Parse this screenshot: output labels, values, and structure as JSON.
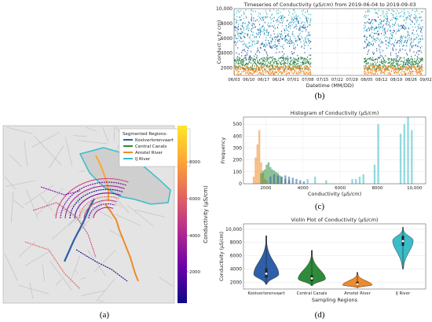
{
  "figure": {
    "captions": {
      "a": "(a)",
      "b": "(b)",
      "c": "(c)",
      "d": "(d)"
    }
  },
  "map": {
    "legend_title": "Segmented Regions:",
    "legend_items": [
      {
        "label": "Kostverlorenvaart",
        "color": "#2f5fa8"
      },
      {
        "label": "Central Canals",
        "color": "#2e8b3a"
      },
      {
        "label": "Amstel River",
        "color": "#ef8a2a"
      },
      {
        "label": "IJ River",
        "color": "#3bbcc9"
      }
    ],
    "colorbar": {
      "label": "Conductivity (µS/cm)",
      "ticks": [
        "8000",
        "6000",
        "4000",
        "2000"
      ],
      "colors": [
        "#fde725",
        "#fca636",
        "#e16462",
        "#b12a90",
        "#6a00a8",
        "#0d0887"
      ]
    }
  },
  "chart_data": [
    {
      "id": "timeseries",
      "type": "scatter",
      "title": "Timeseries of Conductivity (µS/cm) from 2019-06-04 to 2019-09-03",
      "xlabel": "Datetime (MM/DD)",
      "ylabel": "Conduct v ty      cm)",
      "x_ticks": [
        "06/03",
        "06/10",
        "06/17",
        "06/24",
        "07/01",
        "07/08",
        "07/15",
        "07/22",
        "07/29",
        "08/05",
        "08/12",
        "08/19",
        "08/26",
        "09/02"
      ],
      "y_ticks": [
        "2000",
        "4000",
        "6000",
        "8000",
        "10,000"
      ],
      "ylim": [
        1000,
        10000
      ],
      "grid": true,
      "series": [
        {
          "color": "#3bbcc9",
          "segments": [
            [
              0,
              5.2
            ],
            [
              8.8,
              12.8
            ]
          ],
          "y_range": [
            5000,
            10000
          ]
        },
        {
          "color": "#2f5fa8",
          "segments": [
            [
              0,
              5.2
            ],
            [
              8.8,
              12.8
            ]
          ],
          "y_range": [
            2500,
            9000
          ]
        },
        {
          "color": "#2e8b3a",
          "segments": [
            [
              0,
              5.2
            ],
            [
              8.8,
              12.8
            ]
          ],
          "y_range": [
            1800,
            3500
          ]
        },
        {
          "color": "#ef8a2a",
          "segments": [
            [
              0,
              5.2
            ],
            [
              8.8,
              12.8
            ]
          ],
          "y_range": [
            1200,
            2400
          ]
        }
      ]
    },
    {
      "id": "histogram",
      "type": "bar",
      "title": "Histogram of Conductivity (µS/cm)",
      "xlabel": "Conductivity (µS/cm)",
      "ylabel": "Frequency",
      "x_ticks": [
        "2000",
        "4000",
        "6000",
        "8000",
        "10,000"
      ],
      "y_ticks": [
        "0",
        "100",
        "200",
        "300",
        "400",
        "500"
      ],
      "xlim": [
        800,
        10600
      ],
      "ylim": [
        0,
        560
      ],
      "series": [
        {
          "name": "Amstel River",
          "color": "#ef8a2a",
          "bins": [
            [
              1300,
              60
            ],
            [
              1400,
              220
            ],
            [
              1500,
              330
            ],
            [
              1600,
              450
            ],
            [
              1700,
              180
            ],
            [
              1800,
              90
            ],
            [
              1900,
              40
            ],
            [
              2000,
              30
            ]
          ]
        },
        {
          "name": "Central Canals",
          "color": "#2e8b3a",
          "bins": [
            [
              1700,
              90
            ],
            [
              1800,
              110
            ],
            [
              1900,
              120
            ],
            [
              2000,
              160
            ],
            [
              2100,
              180
            ],
            [
              2200,
              140
            ],
            [
              2300,
              120
            ],
            [
              2400,
              110
            ],
            [
              2500,
              100
            ],
            [
              2600,
              90
            ],
            [
              2700,
              70
            ],
            [
              2800,
              60
            ],
            [
              3000,
              40
            ],
            [
              3200,
              30
            ]
          ]
        },
        {
          "name": "Kostverlorenvaart",
          "color": "#2f5fa8",
          "bins": [
            [
              2200,
              60
            ],
            [
              2400,
              80
            ],
            [
              2600,
              70
            ],
            [
              2800,
              60
            ],
            [
              3000,
              70
            ],
            [
              3200,
              60
            ],
            [
              3400,
              50
            ],
            [
              3600,
              40
            ],
            [
              3800,
              30
            ],
            [
              4000,
              20
            ]
          ]
        },
        {
          "name": "IJ River",
          "color": "#3bbcc9",
          "bins": [
            [
              4200,
              40
            ],
            [
              4600,
              60
            ],
            [
              5200,
              30
            ],
            [
              6600,
              40
            ],
            [
              6800,
              40
            ],
            [
              7000,
              60
            ],
            [
              7200,
              80
            ],
            [
              7800,
              160
            ],
            [
              8000,
              500
            ],
            [
              9200,
              420
            ],
            [
              9400,
              500
            ],
            [
              9600,
              560
            ],
            [
              9800,
              450
            ]
          ]
        }
      ]
    },
    {
      "id": "violin",
      "type": "violin",
      "title": "Violin Plot of Conductivity (µS/cm)",
      "xlabel": "Sampling Regions",
      "ylabel": "Conductivity (µS/cm)",
      "categories": [
        "Kostverlorenvaart",
        "Central Canals",
        "Amstel River",
        "IJ River"
      ],
      "y_ticks": [
        "2000",
        "4000",
        "6000",
        "8000",
        "10,000"
      ],
      "ylim": [
        1000,
        10800
      ],
      "violins": [
        {
          "color": "#2f5fa8",
          "min": 1700,
          "max": 9000,
          "median": 3300,
          "q1": 2700,
          "q3": 4100,
          "peak": 3200,
          "width": 0.55
        },
        {
          "color": "#2e8b3a",
          "min": 1500,
          "max": 6800,
          "median": 2600,
          "q1": 2200,
          "q3": 3100,
          "peak": 2500,
          "width": 0.6
        },
        {
          "color": "#ef8a2a",
          "min": 1200,
          "max": 3500,
          "median": 1700,
          "q1": 1500,
          "q3": 2100,
          "peak": 1600,
          "width": 0.65
        },
        {
          "color": "#3bbcc9",
          "min": 4000,
          "max": 10300,
          "median": 8200,
          "q1": 7500,
          "q3": 9000,
          "peak": 8300,
          "width": 0.45
        }
      ]
    }
  ]
}
